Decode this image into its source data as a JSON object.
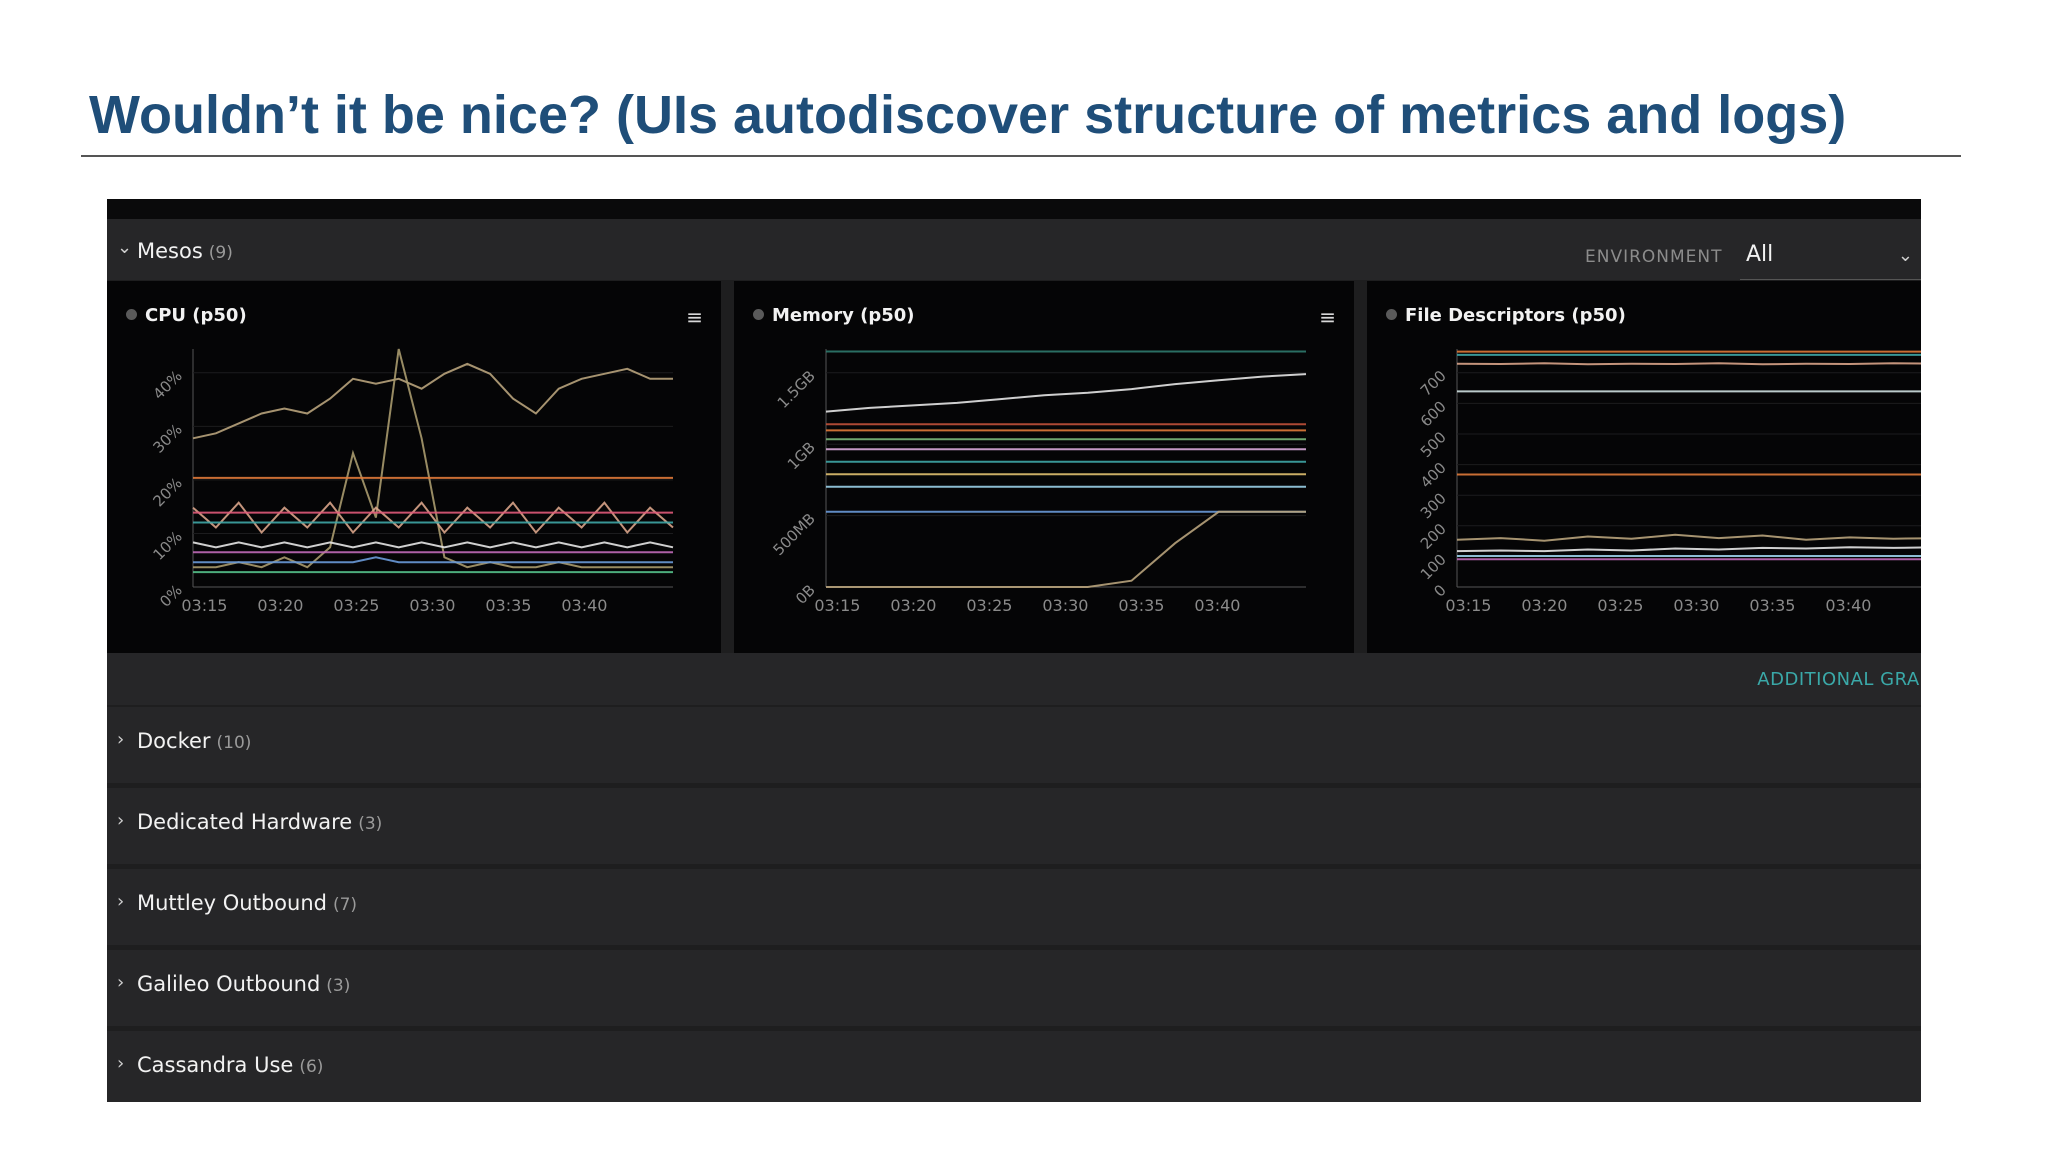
{
  "slide": {
    "title": "Wouldn’t it be nice? (UIs autodiscover structure of metrics and logs)"
  },
  "mesos": {
    "name": "Mesos",
    "count": "(9)",
    "expanded": true
  },
  "environment": {
    "label": "ENVIRONMENT",
    "value": "All"
  },
  "panels": {
    "cpu": {
      "title": "CPU (p50)"
    },
    "memory": {
      "title": "Memory (p50)"
    },
    "fd": {
      "title": "File Descriptors (p50)"
    }
  },
  "additional_graphs": "ADDITIONAL GRAPHS",
  "groups": [
    {
      "name": "Docker",
      "count": "(10)"
    },
    {
      "name": "Dedicated Hardware",
      "count": "(3)"
    },
    {
      "name": "Muttley Outbound",
      "count": "(7)"
    },
    {
      "name": "Galileo Outbound",
      "count": "(3)"
    },
    {
      "name": "Cassandra Use",
      "count": "(6)"
    }
  ],
  "icons": {
    "expanded": "chevron-down-icon",
    "collapsed": "chevron-right-icon",
    "menu": "hamburger-menu-icon",
    "status": "status-dot-icon"
  },
  "colors": {
    "title": "#1f4e79",
    "background": "#1e1e1f",
    "panel": "#050506",
    "accent": "#3aa8a8"
  },
  "chart_data": [
    {
      "type": "line",
      "title": "CPU (p50)",
      "x_ticks": [
        "03:15",
        "03:20",
        "03:25",
        "03:30",
        "03:35",
        "03:40"
      ],
      "y_ticks": [
        "0%",
        "10%",
        "20%",
        "30%",
        "40%"
      ],
      "ylim": [
        0,
        48
      ],
      "series": [
        {
          "color": "#b8a37c",
          "values": [
            30,
            31,
            33,
            35,
            36,
            35,
            38,
            42,
            41,
            42,
            40,
            43,
            45,
            43,
            38,
            35,
            40,
            42,
            43,
            44,
            42,
            42
          ]
        },
        {
          "color": "#a89a6e",
          "values": [
            4,
            4,
            5,
            4,
            6,
            4,
            8,
            27,
            14,
            48,
            30,
            6,
            4,
            5,
            4,
            4,
            5,
            4,
            4,
            4,
            4,
            4
          ]
        },
        {
          "color": "#d9a48a",
          "values": [
            16,
            12,
            17,
            11,
            16,
            12,
            17,
            11,
            16,
            12,
            17,
            11,
            16,
            12,
            17,
            11,
            16,
            12,
            17,
            11,
            16,
            12
          ]
        },
        {
          "color": "#e07a3a",
          "values": [
            22,
            22,
            22,
            22,
            22,
            22,
            22,
            22,
            22,
            22,
            22,
            22,
            22,
            22,
            22,
            22,
            22,
            22,
            22,
            22,
            22,
            22
          ]
        },
        {
          "color": "#e05a7a",
          "values": [
            15,
            15,
            15,
            15,
            15,
            15,
            15,
            15,
            15,
            15,
            15,
            15,
            15,
            15,
            15,
            15,
            15,
            15,
            15,
            15,
            15,
            15
          ]
        },
        {
          "color": "#3fa6a6",
          "values": [
            13,
            13,
            13,
            13,
            13,
            13,
            13,
            13,
            13,
            13,
            13,
            13,
            13,
            13,
            13,
            13,
            13,
            13,
            13,
            13,
            13,
            13
          ]
        },
        {
          "color": "#c06ab8",
          "values": [
            7,
            7,
            7,
            7,
            7,
            7,
            7,
            7,
            7,
            7,
            7,
            7,
            7,
            7,
            7,
            7,
            7,
            7,
            7,
            7,
            7,
            7
          ]
        },
        {
          "color": "#6a9ad8",
          "values": [
            5,
            5,
            5,
            5,
            5,
            5,
            5,
            5,
            6,
            5,
            5,
            5,
            5,
            5,
            5,
            5,
            5,
            5,
            5,
            5,
            5,
            5
          ]
        },
        {
          "color": "#55c08a",
          "values": [
            3,
            3,
            3,
            3,
            3,
            3,
            3,
            3,
            3,
            3,
            3,
            3,
            3,
            3,
            3,
            3,
            3,
            3,
            3,
            3,
            3,
            3
          ]
        },
        {
          "color": "#e6e6e6",
          "values": [
            9,
            8,
            9,
            8,
            9,
            8,
            9,
            8,
            9,
            8,
            9,
            8,
            9,
            8,
            9,
            8,
            9,
            8,
            9,
            8,
            9,
            8
          ]
        }
      ]
    },
    {
      "type": "line",
      "title": "Memory (p50)",
      "x_ticks": [
        "03:15",
        "03:20",
        "03:25",
        "03:30",
        "03:35",
        "03:40"
      ],
      "y_ticks": [
        "0B",
        "500MB",
        "1GB",
        "1.5GB"
      ],
      "ylim": [
        0,
        1.9
      ],
      "series": [
        {
          "color": "#2f7a6e",
          "values": [
            1.88,
            1.88,
            1.88,
            1.88,
            1.88,
            1.88,
            1.88,
            1.88,
            1.88,
            1.88,
            1.88,
            1.88
          ]
        },
        {
          "color": "#e6e6e6",
          "values": [
            1.4,
            1.43,
            1.45,
            1.47,
            1.5,
            1.53,
            1.55,
            1.58,
            1.62,
            1.65,
            1.68,
            1.7
          ]
        },
        {
          "color": "#c0513a",
          "values": [
            1.3,
            1.3,
            1.3,
            1.3,
            1.3,
            1.3,
            1.3,
            1.3,
            1.3,
            1.3,
            1.3,
            1.3
          ]
        },
        {
          "color": "#e07a3a",
          "values": [
            1.25,
            1.25,
            1.25,
            1.25,
            1.25,
            1.25,
            1.25,
            1.25,
            1.25,
            1.25,
            1.25,
            1.25
          ]
        },
        {
          "color": "#7ab87a",
          "values": [
            1.18,
            1.18,
            1.18,
            1.18,
            1.18,
            1.18,
            1.18,
            1.18,
            1.18,
            1.18,
            1.18,
            1.18
          ]
        },
        {
          "color": "#d8a8d8",
          "values": [
            1.1,
            1.1,
            1.1,
            1.1,
            1.1,
            1.1,
            1.1,
            1.1,
            1.1,
            1.1,
            1.1,
            1.1
          ]
        },
        {
          "color": "#3fa6a6",
          "values": [
            1.0,
            1.0,
            1.0,
            1.0,
            1.0,
            1.0,
            1.0,
            1.0,
            1.0,
            1.0,
            1.0,
            1.0
          ]
        },
        {
          "color": "#e0c070",
          "values": [
            0.9,
            0.9,
            0.9,
            0.9,
            0.9,
            0.9,
            0.9,
            0.9,
            0.9,
            0.9,
            0.9,
            0.9
          ]
        },
        {
          "color": "#9ad0e8",
          "values": [
            0.8,
            0.8,
            0.8,
            0.8,
            0.8,
            0.8,
            0.8,
            0.8,
            0.8,
            0.8,
            0.8,
            0.8
          ]
        },
        {
          "color": "#6a9ad8",
          "values": [
            0.6,
            0.6,
            0.6,
            0.6,
            0.6,
            0.6,
            0.6,
            0.6,
            0.6,
            0.6,
            0.6,
            0.6
          ]
        },
        {
          "color": "#b8a37c",
          "values": [
            0,
            0,
            0,
            0,
            0,
            0,
            0,
            0.05,
            0.35,
            0.6,
            0.6,
            0.6
          ]
        }
      ]
    },
    {
      "type": "line",
      "title": "File Descriptors (p50)",
      "x_ticks": [
        "03:15",
        "03:20",
        "03:25",
        "03:30",
        "03:35",
        "03:40"
      ],
      "y_ticks": [
        "0",
        "100",
        "200",
        "300",
        "400",
        "500",
        "600",
        "700"
      ],
      "ylim": [
        0,
        730
      ],
      "series": [
        {
          "color": "#e07a3a",
          "values": [
            722,
            722,
            722,
            722,
            722,
            722,
            722,
            722,
            722,
            722,
            722,
            722
          ]
        },
        {
          "color": "#3fa6a6",
          "values": [
            712,
            712,
            712,
            712,
            712,
            712,
            712,
            712,
            712,
            712,
            712,
            712
          ]
        },
        {
          "color": "#d9a48a",
          "values": [
            685,
            684,
            686,
            683,
            685,
            684,
            686,
            683,
            685,
            684,
            686,
            685
          ]
        },
        {
          "color": "#cfe0e0",
          "values": [
            600,
            600,
            600,
            600,
            600,
            600,
            600,
            600,
            600,
            600,
            600,
            600
          ]
        },
        {
          "color": "#e07a3a",
          "values": [
            345,
            345,
            345,
            345,
            345,
            345,
            345,
            345,
            345,
            345,
            345,
            345
          ]
        },
        {
          "color": "#b8a37c",
          "values": [
            145,
            150,
            142,
            155,
            148,
            160,
            150,
            158,
            145,
            152,
            148,
            150
          ]
        },
        {
          "color": "#e6e6e6",
          "values": [
            110,
            112,
            110,
            115,
            112,
            118,
            115,
            120,
            118,
            122,
            120,
            122
          ]
        },
        {
          "color": "#9ad0e8",
          "values": [
            95,
            95,
            95,
            95,
            95,
            95,
            95,
            95,
            95,
            95,
            95,
            95
          ]
        },
        {
          "color": "#c06ab8",
          "values": [
            85,
            85,
            85,
            85,
            85,
            85,
            85,
            85,
            85,
            85,
            85,
            85
          ]
        }
      ]
    }
  ]
}
